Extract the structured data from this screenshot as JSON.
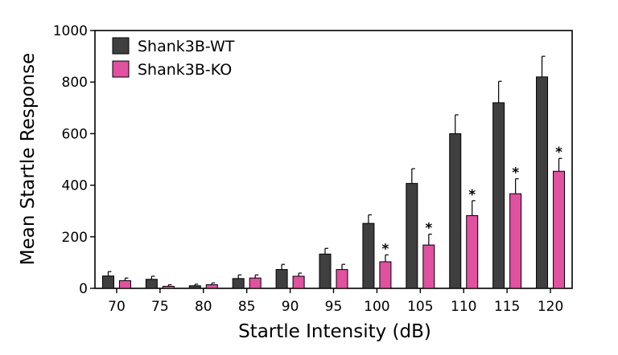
{
  "chart_data": {
    "type": "bar",
    "xlabel": "Startle Intensity (dB)",
    "ylabel": "Mean  Startle Response",
    "ylim": [
      0,
      1000
    ],
    "yticks": [
      0,
      200,
      400,
      600,
      800,
      1000
    ],
    "grid": false,
    "legend_position": "top-left",
    "categories": [
      "70",
      "75",
      "80",
      "85",
      "90",
      "95",
      "100",
      "105",
      "110",
      "115",
      "120"
    ],
    "series": [
      {
        "name": "Shank3B-WT",
        "color": "#3f3f3f",
        "values": [
          48,
          35,
          10,
          38,
          73,
          133,
          252,
          407,
          600,
          720,
          820
        ],
        "errors": [
          17,
          12,
          6,
          14,
          20,
          22,
          33,
          57,
          73,
          83,
          80
        ]
      },
      {
        "name": "Shank3B-KO",
        "color": "#e0519f",
        "values": [
          30,
          8,
          14,
          40,
          47,
          73,
          103,
          168,
          282,
          367,
          454
        ],
        "errors": [
          10,
          6,
          7,
          12,
          12,
          20,
          27,
          42,
          58,
          58,
          50
        ]
      }
    ],
    "annotations": [
      {
        "category": "100",
        "series": "Shank3B-KO",
        "text": "*"
      },
      {
        "category": "105",
        "series": "Shank3B-KO",
        "text": "*"
      },
      {
        "category": "110",
        "series": "Shank3B-KO",
        "text": "*"
      },
      {
        "category": "115",
        "series": "Shank3B-KO",
        "text": "*"
      },
      {
        "category": "120",
        "series": "Shank3B-KO",
        "text": "*"
      }
    ]
  }
}
